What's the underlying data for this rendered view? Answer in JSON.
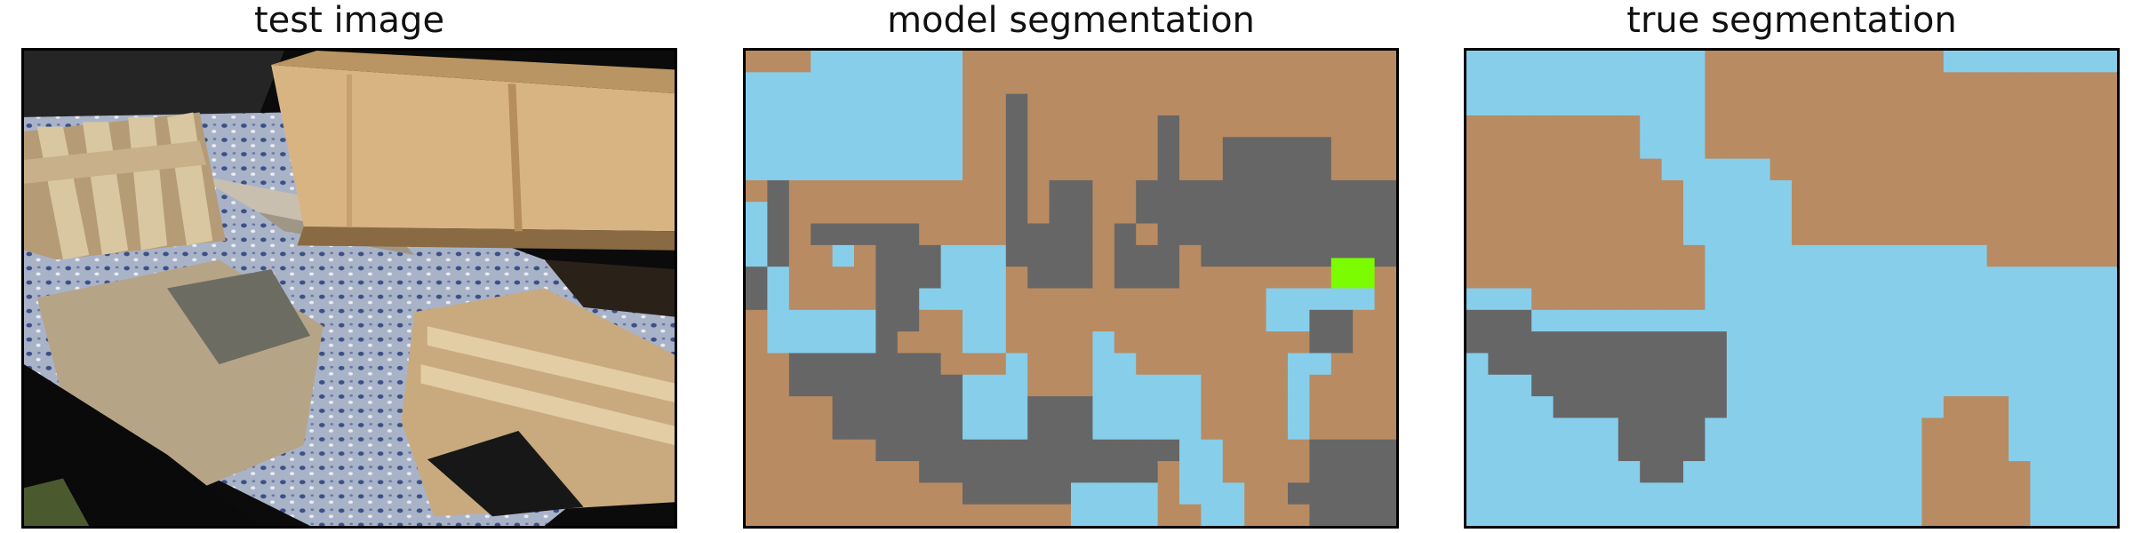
{
  "panels": [
    {
      "title": "test image"
    },
    {
      "title": "model segmentation"
    },
    {
      "title": "true segmentation"
    }
  ],
  "colors": {
    "background": "#ffffff",
    "border": "#000000",
    "class_tan": "#b88b62",
    "class_blue": "#87ceeb",
    "class_gray": "#666666",
    "class_green": "#7cfc00"
  },
  "grid": {
    "cols": 30,
    "rows": 22
  },
  "model_segmentation": [
    "TTTBBBBBBBTTTTTTTTTTTTTTTTTTTT",
    "BBBBBBBBBBTTTTTTTTTTTTTTTTTTTT",
    "BBBBBBBBBBTTGTTTTTTTTTTTTTTTTT",
    "BBBBBBBBBBTTGTTTTTTGTTTTTTTTTT",
    "BBBBBBBBBBTTGTTTTTTGTTGGGGGTTT",
    "BBBBBBBBBBTTGTTTTTTGTTGGGGGTTT",
    "TGTTTTTTTTTTGTGGTTGGGGGGGGGGGG",
    "BGTTTTTTTTTTGTGGTTGGGGGGGGGGGG",
    "BGTGGGGGTTTTGGGGTGTGGGGGGGGGGG",
    "BGTTBTGGGBBBGGGGTGGGTGGGGGGGGG",
    "GBTTTTGGGBBBTGGGTGGGTTTTTTTTTT",
    "GBTTTTGGBBBBTTTTTTTTTTTTBBBBBT",
    "TBBBBBGGTTBBTTTTTTTTTTTTBBGGTT",
    "TBBBBBGTTTBBTTTTBTTTTTTTTTGGTT",
    "TTGGGGGGGTTTBTTTBBTTTTTTTBBTTT",
    "TTGGGGGGGGBBBTTTBBBBBTTTTBTTTT",
    "TTTTGGGGGGBBBGGGBBBBBTTTTBTTTT",
    "TTTTGGGGGGBBBGGGBBBBBTTTTBTTTT",
    "TTTTTTGGGGGGGGGGGGGGBBTTTTGGGG",
    "TTTTTTTTGGGGGGGGGGGTBBTTTTGGGG",
    "TTTTTTTTTTGGGGGBBBBTBBBTTGGGGG",
    "TTTTTTTTTTTTTTTBBBBTTBBTTTGGGG"
  ],
  "true_segmentation": [
    "BBBBBBBBBBBTTTTTTTTTTTBBBBBBBB",
    "BBBBBBBBBBBTTTTTTTTTTTTTTTTTTT",
    "BBBBBBBBBBBTTTTTTTTTTTTTTTTTTT",
    "TTTTTTTTBBBTTTTTTTTTTTTTTTTTTT",
    "TTTTTTTTBBBTTTTTTTTTTTTTTTTTTT",
    "TTTTTTTTTBBBBBTTTTTTTTTTTTTTTT",
    "TTTTTTTTTTBBBBBTTTTTTTTTTTTTTT",
    "TTTTTTTTTTBBBBBTTTTTTTTTTTTTTT",
    "TTTTTTTTTTBBBBBTTTTTTTTTTTTTTT",
    "TTTTTTTTTTTBBBBBBBBBBBBBTTTTTT",
    "TTTTTTTTTTTBBBBBBBBBBBBBBBBBBB",
    "BBBTTTTTTTTBBBBBBBBBBBBBBBBBBB",
    "GGGBBBBBBBBBBBBBBBBBBBBBBBBBBB",
    "GGGGGGGGGGGGBBBBBBBBBBBBBBBBBB",
    "BGGGGGGGGGGGBBBBBBBBBBBBBBBBBB",
    "BBBGGGGGGGGGBBBBBBBBBBBBBBBBBB",
    "BBBBGGGGGGGGBBBBBBBBBBTTTBBBBB",
    "BBBBBBBGGGGBBBBBBBBBBTTTTBBBBB",
    "BBBBBBBGGGGBBBBBBBBBBTTTTBBBBB",
    "BBBBBBBBGGBBBBBBBBBBBTTTTTBBBB",
    "BBBBBBBBBBBBBBBBBBBBBTTTTTBBBB",
    "BBBBBBBBBBBBBBBBBBBBBTTTTTBBBB"
  ]
}
